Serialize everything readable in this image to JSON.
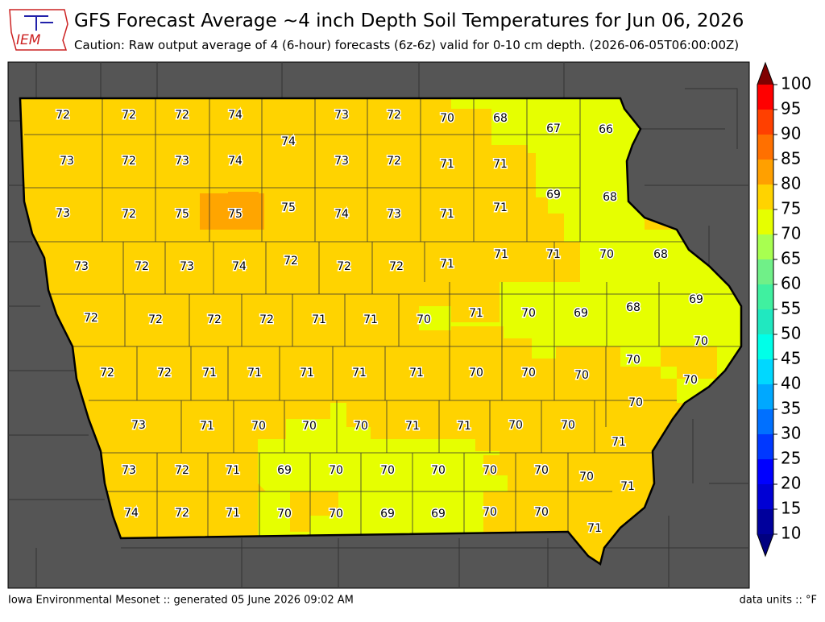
{
  "header": {
    "logo": "IEM",
    "title": "GFS Forecast Average ~4 inch Depth Soil Temperatures for Jun 06, 2026",
    "subtitle": "Caution: Raw output average of 4 (6-hour) forecasts (6z-6z) valid for 0-10 cm depth. (2026-06-05T06:00:00Z)"
  },
  "map": {
    "values": [
      72,
      72,
      72,
      74,
      73,
      72,
      70,
      68,
      67,
      66,
      74,
      73,
      72,
      73,
      74,
      73,
      72,
      71,
      71,
      69,
      68,
      73,
      72,
      75,
      75,
      75,
      74,
      73,
      71,
      71,
      73,
      72,
      73,
      74,
      72,
      72,
      72,
      71,
      71,
      71,
      70,
      68,
      72,
      72,
      72,
      72,
      71,
      71,
      70,
      71,
      70,
      69,
      68,
      69,
      70,
      72,
      72,
      71,
      71,
      71,
      71,
      71,
      70,
      70,
      70,
      70,
      70,
      73,
      71,
      70,
      70,
      70,
      71,
      71,
      70,
      70,
      70,
      71,
      73,
      72,
      71,
      69,
      70,
      70,
      70,
      70,
      70,
      70,
      71,
      74,
      72,
      71,
      70,
      70,
      69,
      69,
      70,
      70,
      71
    ]
  },
  "colorbar": {
    "ticks": [
      10,
      15,
      20,
      25,
      30,
      35,
      40,
      45,
      50,
      55,
      60,
      65,
      70,
      75,
      80,
      85,
      90,
      95,
      100
    ],
    "colors": [
      "#00009c",
      "#0000d4",
      "#0000ff",
      "#0038ff",
      "#0070ff",
      "#00a8ff",
      "#00d8ff",
      "#00ffe8",
      "#20e8c0",
      "#40f0a0",
      "#70f088",
      "#a8ff50",
      "#e6ff00",
      "#ffd300",
      "#ffa000",
      "#ff7000",
      "#ff4000",
      "#ff0000",
      "#c00000"
    ],
    "under_color": "#000080",
    "over_color": "#800000"
  },
  "footer": {
    "left": "Iowa Environmental Mesonet :: generated 05 June 2026 09:02 AM",
    "right": "data units :: °F"
  }
}
